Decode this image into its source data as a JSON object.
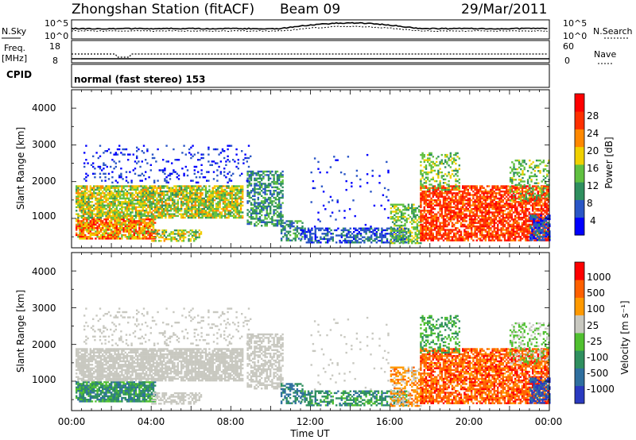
{
  "header": {
    "station": "Zhongshan Station (fitACF)",
    "beam": "Beam 09",
    "date": "29/Mar/2011"
  },
  "noise_panel": {
    "left_label": "N.Sky",
    "right_label": "N.Search",
    "left_ticks": [
      "10^5",
      "10^0"
    ],
    "right_ticks": [
      "10^5",
      "10^0"
    ]
  },
  "freq_panel": {
    "left_label_1": "Freq.",
    "left_label_2": "[MHz]",
    "right_label": "Nave",
    "left_ticks": [
      "18",
      "8"
    ],
    "right_ticks": [
      "60",
      "0"
    ]
  },
  "cpid_panel": {
    "label": "CPID",
    "text": "normal (fast stereo) 153"
  },
  "chart_data": [
    {
      "type": "heatmap",
      "name": "Power",
      "ylabel": "Slant Range [km]",
      "xlabel": "",
      "yticks": [
        "4000",
        "3000",
        "2000",
        "1000"
      ],
      "ylim": [
        200,
        4500
      ],
      "xlim_hours": [
        0,
        24
      ],
      "colorbar": {
        "label": "Power [dB]",
        "ticks": [
          "28",
          "24",
          "20",
          "16",
          "12",
          "8",
          "4"
        ],
        "colors": [
          "#0000ff",
          "#2a56c6",
          "#2f8f5f",
          "#60c040",
          "#f0d000",
          "#ff8800",
          "#ff3000",
          "#ff0000"
        ]
      }
    },
    {
      "type": "heatmap",
      "name": "Velocity",
      "ylabel": "Slant Range [km]",
      "xlabel": "Time UT",
      "yticks": [
        "4000",
        "3000",
        "2000",
        "1000"
      ],
      "xticks": [
        "00:00",
        "04:00",
        "08:00",
        "12:00",
        "16:00",
        "20:00",
        "00:00"
      ],
      "ylim": [
        200,
        4500
      ],
      "xlim_hours": [
        0,
        24
      ],
      "colorbar": {
        "label": "Velocity [m s⁻¹]",
        "ticks": [
          "1000",
          "500",
          "100",
          "25",
          "-25",
          "-100",
          "-500",
          "-1000"
        ],
        "colors": [
          "#2a3ac0",
          "#2f6f9f",
          "#2f8f5f",
          "#50c030",
          "#c8c8c0",
          "#ff9900",
          "#ff6000",
          "#ff0000"
        ]
      }
    }
  ]
}
